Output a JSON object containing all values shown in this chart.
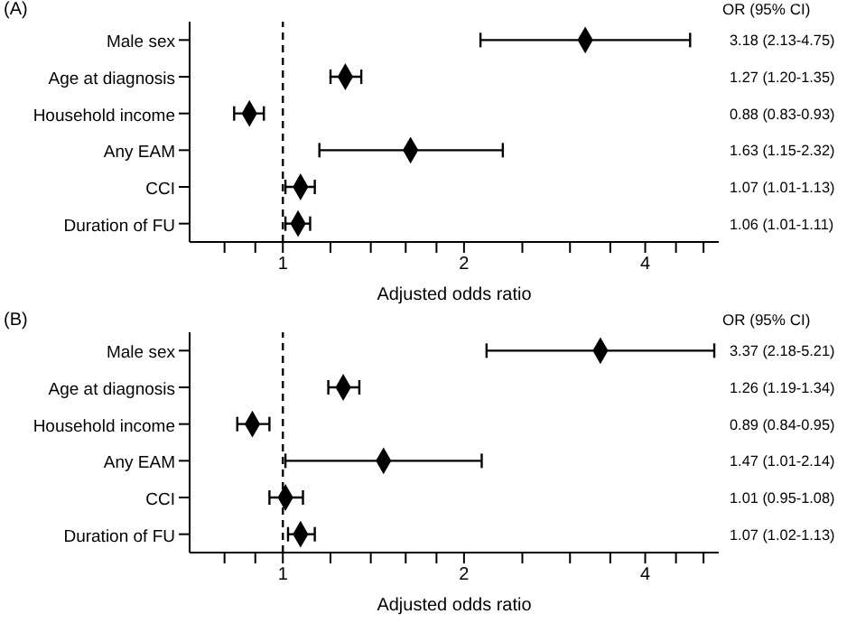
{
  "chart_data": [
    {
      "type": "scatter",
      "orientation": "horizontal",
      "title": "(A)",
      "xlabel": "Adjusted odds ratio",
      "annotations": [
        "OR (95% CI)"
      ],
      "color": "#000000",
      "marker": "diamond",
      "log": "x",
      "categories": [
        "Male sex",
        "Age at diagnosis",
        "Household income",
        "Any EAM",
        "CCI",
        "Duration of FU"
      ],
      "values": [
        3.18,
        1.27,
        0.88,
        1.63,
        1.07,
        1.06
      ],
      "errors": [
        [
          2.13,
          4.75
        ],
        [
          1.2,
          1.35
        ],
        [
          0.83,
          0.93
        ],
        [
          1.15,
          2.32
        ],
        [
          1.01,
          1.13
        ],
        [
          1.01,
          1.11
        ]
      ],
      "value_labels": [
        "3.18 (2.13-4.75)",
        "1.27 (1.20-1.35)",
        "0.88 (0.83-0.93)",
        "1.63 (1.15-2.32)",
        "1.07 (1.01-1.13)",
        "1.06 (1.01-1.11)"
      ],
      "xlim": [
        0.7,
        5.3
      ],
      "xticks": [
        {
          "value": 0.8,
          "label": null
        },
        {
          "value": 0.9,
          "label": null
        },
        1,
        {
          "value": 1.2,
          "label": null
        },
        {
          "value": 1.4,
          "label": null
        },
        {
          "value": 1.6,
          "label": null
        },
        {
          "value": 1.8,
          "label": null
        },
        2,
        {
          "value": 2.5,
          "label": null
        },
        {
          "value": 3,
          "label": null
        },
        {
          "value": 3.5,
          "label": null
        },
        4,
        {
          "value": 4.5,
          "label": null
        },
        {
          "value": 5,
          "label": null
        }
      ],
      "ref_lines": [
        {
          "axis": "x",
          "value": 1,
          "line_style": "dashed",
          "color": "#000000"
        }
      ]
    },
    {
      "type": "scatter",
      "orientation": "horizontal",
      "title": "(B)",
      "xlabel": "Adjusted odds ratio",
      "annotations": [
        "OR (95% CI)"
      ],
      "color": "#000000",
      "marker": "diamond",
      "log": "x",
      "categories": [
        "Male sex",
        "Age at diagnosis",
        "Household income",
        "Any EAM",
        "CCI",
        "Duration of FU"
      ],
      "values": [
        3.37,
        1.26,
        0.89,
        1.47,
        1.01,
        1.07
      ],
      "errors": [
        [
          2.18,
          5.21
        ],
        [
          1.19,
          1.34
        ],
        [
          0.84,
          0.95
        ],
        [
          1.01,
          2.14
        ],
        [
          0.95,
          1.08
        ],
        [
          1.02,
          1.13
        ]
      ],
      "value_labels": [
        "3.37 (2.18-5.21)",
        "1.26 (1.19-1.34)",
        "0.89 (0.84-0.95)",
        "1.47 (1.01-2.14)",
        "1.01 (0.95-1.08)",
        "1.07 (1.02-1.13)"
      ],
      "xlim": [
        0.7,
        5.3
      ],
      "xticks": [
        {
          "value": 0.8,
          "label": null
        },
        {
          "value": 0.9,
          "label": null
        },
        1,
        {
          "value": 1.2,
          "label": null
        },
        {
          "value": 1.4,
          "label": null
        },
        {
          "value": 1.6,
          "label": null
        },
        {
          "value": 1.8,
          "label": null
        },
        2,
        {
          "value": 2.5,
          "label": null
        },
        {
          "value": 3,
          "label": null
        },
        {
          "value": 3.5,
          "label": null
        },
        4,
        {
          "value": 4.5,
          "label": null
        },
        {
          "value": 5,
          "label": null
        }
      ],
      "ref_lines": [
        {
          "axis": "x",
          "value": 1,
          "line_style": "dashed",
          "color": "#000000"
        }
      ]
    }
  ]
}
